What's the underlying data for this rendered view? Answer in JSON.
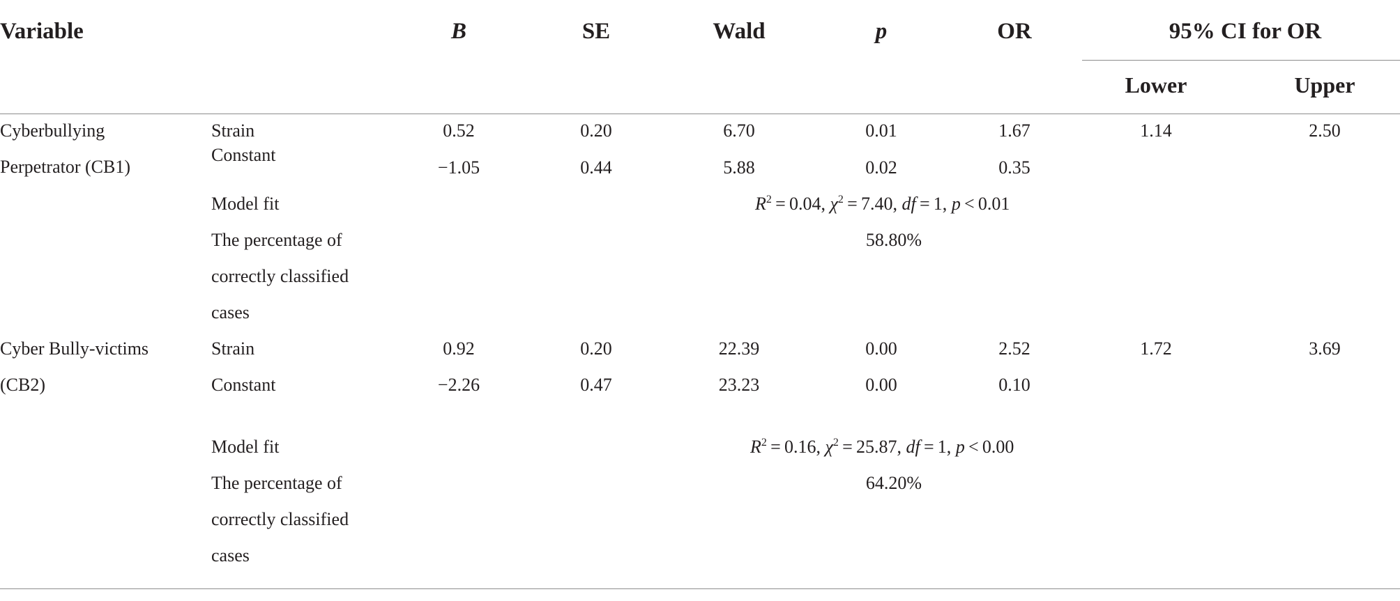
{
  "headers": {
    "variable": "Variable",
    "b": "B",
    "se": "SE",
    "wald": "Wald",
    "p": "p",
    "or": "OR",
    "ci": "95% CI for OR",
    "lower": "Lower",
    "upper": "Upper"
  },
  "groups": [
    {
      "name_line1": "Cyberbullying",
      "name_line2": "Perpetrator (CB1)",
      "strain": {
        "label": "Strain",
        "b": "0.52",
        "se": "0.20",
        "wald": "6.70",
        "p": "0.01",
        "or": "1.67",
        "lower": "1.14",
        "upper": "2.50"
      },
      "constant": {
        "label": "Constant",
        "b": "−1.05",
        "se": "0.44",
        "wald": "5.88",
        "p": "0.02",
        "or": "0.35"
      },
      "model_fit": {
        "label": "Model fit",
        "r2_sym": "R",
        "r2_sup": "2",
        "r2_val": " = 0.04, ",
        "chi_sym": "χ",
        "chi_sup": "2",
        "chi_val": " = 7.40, ",
        "df_sym": "df",
        "df_val": " = 1, ",
        "p_sym": "p",
        "p_val": " < 0.01"
      },
      "pct": {
        "label_line1": "The percentage of",
        "label_line2": "correctly classified",
        "label_line3": "cases",
        "value": "58.80%"
      }
    },
    {
      "name_line1": "Cyber Bully-victims",
      "name_line2": "(CB2)",
      "strain": {
        "label": "Strain",
        "b": "0.92",
        "se": "0.20",
        "wald": "22.39",
        "p": "0.00",
        "or": "2.52",
        "lower": "1.72",
        "upper": "3.69"
      },
      "constant": {
        "label": "Constant",
        "b": "−2.26",
        "se": "0.47",
        "wald": "23.23",
        "p": "0.00",
        "or": "0.10"
      },
      "model_fit": {
        "label": "Model fit",
        "r2_sym": "R",
        "r2_sup": "2",
        "r2_val": " = 0.16, ",
        "chi_sym": "χ",
        "chi_sup": "2",
        "chi_val": " = 25.87, ",
        "df_sym": "df",
        "df_val": " = 1, ",
        "p_sym": "p",
        "p_val": " < 0.00"
      },
      "pct": {
        "label_line1": "The percentage of",
        "label_line2": "correctly classified",
        "label_line3": "cases",
        "value": "64.20%"
      }
    }
  ]
}
